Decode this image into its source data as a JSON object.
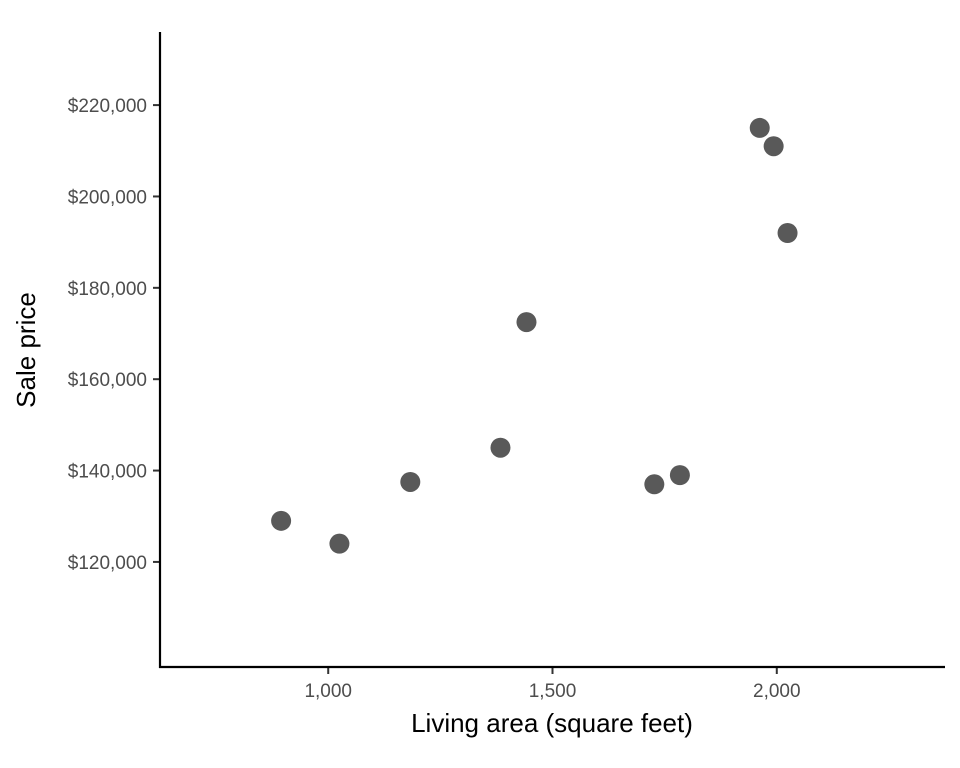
{
  "chart_data": {
    "type": "scatter",
    "xlabel": "Living area (square feet)",
    "ylabel": "Sale price",
    "xlim": [
      625,
      2375
    ],
    "ylim": [
      97000,
      236000
    ],
    "x_ticks": [
      {
        "value": 1000,
        "label": "1,000"
      },
      {
        "value": 1500,
        "label": "1,500"
      },
      {
        "value": 2000,
        "label": "2,000"
      }
    ],
    "y_ticks": [
      {
        "value": 120000,
        "label": "$120,000"
      },
      {
        "value": 140000,
        "label": "$140,000"
      },
      {
        "value": 160000,
        "label": "$160,000"
      },
      {
        "value": 180000,
        "label": "$180,000"
      },
      {
        "value": 200000,
        "label": "$200,000"
      },
      {
        "value": 220000,
        "label": "$220,000"
      }
    ],
    "grid": false,
    "point_color": "#595959",
    "points": [
      {
        "x": 895,
        "y": 129000
      },
      {
        "x": 1025,
        "y": 124000
      },
      {
        "x": 1183,
        "y": 137500
      },
      {
        "x": 1384,
        "y": 145000
      },
      {
        "x": 1442,
        "y": 172500
      },
      {
        "x": 1727,
        "y": 137000
      },
      {
        "x": 1784,
        "y": 139000
      },
      {
        "x": 1962,
        "y": 215000
      },
      {
        "x": 1993,
        "y": 211000
      },
      {
        "x": 2024,
        "y": 192000
      }
    ]
  }
}
